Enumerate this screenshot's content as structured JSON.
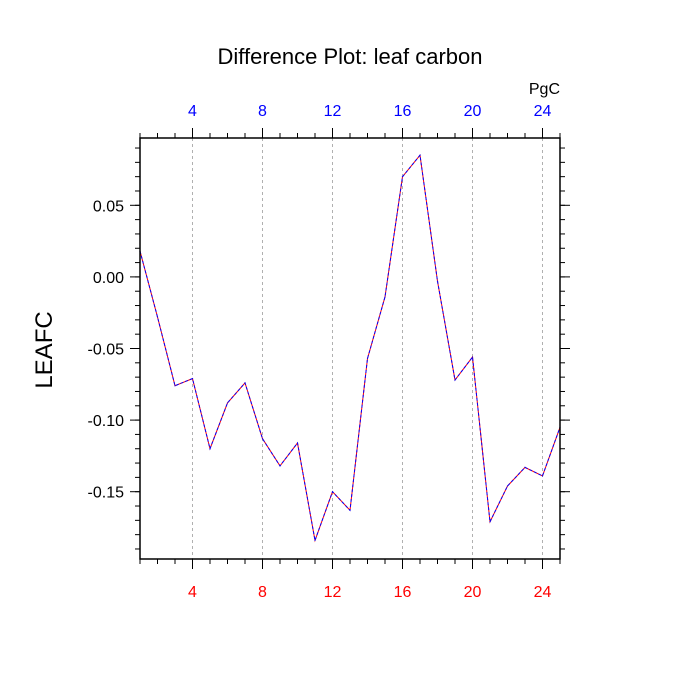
{
  "chart_data": {
    "type": "line",
    "title": "Difference Plot: leaf carbon",
    "ylabel": "LEAFC",
    "units": "PgC",
    "xlim": [
      1,
      25
    ],
    "ylim": [
      -0.197,
      0.097
    ],
    "x_ticks": [
      4,
      8,
      12,
      16,
      20,
      24
    ],
    "x_tick_labels": [
      "4",
      "8",
      "12",
      "16",
      "20",
      "24"
    ],
    "y_ticks": [
      0.05,
      0.0,
      -0.05,
      -0.1,
      -0.15
    ],
    "y_tick_labels": [
      "0.05",
      "0.00",
      "-0.05",
      "-0.10",
      "-0.15"
    ],
    "grid": "vertical dashed at x ticks",
    "colors": {
      "top_axis_labels": "#0000ff",
      "bottom_axis_labels": "#ff0000",
      "series_line_a": "#ff0000",
      "series_line_b": "#0000ff"
    },
    "x": [
      1,
      2,
      3,
      4,
      5,
      6,
      7,
      8,
      9,
      10,
      11,
      12,
      13,
      14,
      15,
      16,
      17,
      18,
      19,
      20,
      21,
      22,
      23,
      24,
      25
    ],
    "series": [
      {
        "values": [
          0.018,
          -0.028,
          -0.076,
          -0.071,
          -0.12,
          -0.088,
          -0.074,
          -0.113,
          -0.132,
          -0.116,
          -0.184,
          -0.15,
          -0.163,
          -0.057,
          -0.014,
          0.07,
          0.085,
          -0.003,
          -0.072,
          -0.056,
          -0.171,
          -0.146,
          -0.133,
          -0.139,
          -0.105
        ]
      }
    ]
  }
}
